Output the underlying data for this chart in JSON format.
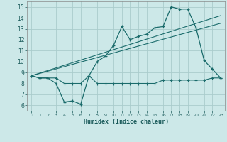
{
  "xlabel": "Humidex (Indice chaleur)",
  "background_color": "#cce8e8",
  "grid_color": "#aacccc",
  "line_color": "#1a6b6b",
  "xlim": [
    -0.5,
    23.5
  ],
  "ylim": [
    5.5,
    15.5
  ],
  "yticks": [
    6,
    7,
    8,
    9,
    10,
    11,
    12,
    13,
    14,
    15
  ],
  "xticks": [
    0,
    1,
    2,
    3,
    4,
    5,
    6,
    7,
    8,
    9,
    10,
    11,
    12,
    13,
    14,
    15,
    16,
    17,
    18,
    19,
    20,
    21,
    22,
    23
  ],
  "line1_x": [
    0,
    1,
    2,
    3,
    4,
    5,
    6,
    7,
    8,
    9,
    10,
    11,
    12,
    13,
    14,
    15,
    16,
    17,
    18,
    19,
    20,
    21,
    22,
    23
  ],
  "line1_y": [
    8.7,
    8.5,
    8.5,
    8.0,
    6.3,
    6.4,
    6.1,
    8.7,
    10.0,
    10.5,
    11.5,
    13.2,
    12.0,
    12.3,
    12.5,
    13.1,
    13.2,
    15.0,
    14.8,
    14.8,
    13.1,
    10.1,
    9.3,
    8.5
  ],
  "line2_x": [
    0,
    1,
    2,
    3,
    4,
    5,
    6,
    7,
    8,
    9,
    10,
    11,
    12,
    13,
    14,
    15,
    16,
    17,
    18,
    19,
    20,
    21,
    22,
    23
  ],
  "line2_y": [
    8.7,
    8.5,
    8.5,
    8.5,
    8.0,
    8.0,
    8.0,
    8.7,
    8.0,
    8.0,
    8.0,
    8.0,
    8.0,
    8.0,
    8.0,
    8.0,
    8.3,
    8.3,
    8.3,
    8.3,
    8.3,
    8.3,
    8.5,
    8.5
  ],
  "line3_x": [
    0,
    23
  ],
  "line3_y": [
    8.7,
    13.5
  ],
  "line4_x": [
    0,
    23
  ],
  "line4_y": [
    8.7,
    14.2
  ]
}
